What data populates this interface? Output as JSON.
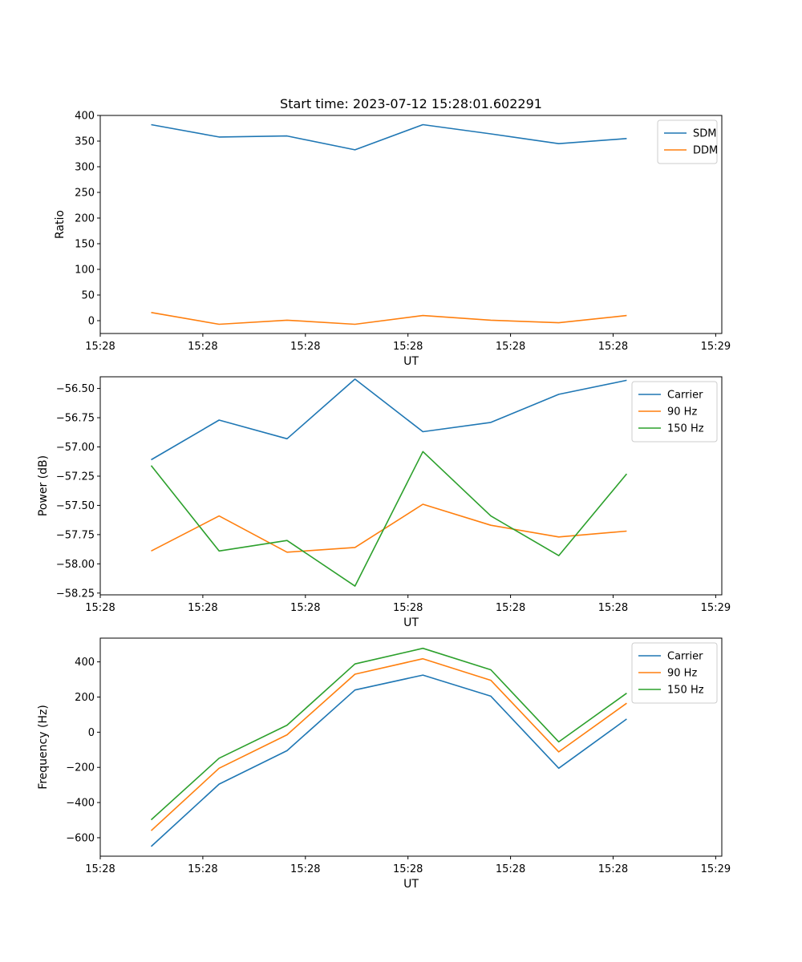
{
  "chart_data": [
    {
      "type": "line",
      "title": "Start time: 2023-07-12 15:28:01.602291",
      "xlabel": "UT",
      "ylabel": "Ratio",
      "x_tick_labels": [
        "15:28",
        "15:28",
        "15:28",
        "15:28",
        "15:28",
        "15:28",
        "15:29"
      ],
      "x": [
        1,
        2,
        3,
        4,
        5,
        6,
        7,
        8
      ],
      "xlim": [
        0.25,
        9.4
      ],
      "ylim": [
        -25,
        400
      ],
      "yticks": [
        0,
        50,
        100,
        150,
        200,
        250,
        300,
        350,
        400
      ],
      "legend": "top-right",
      "series": [
        {
          "name": "SDM",
          "color": "#1f77b4",
          "values": [
            382,
            358,
            360,
            333,
            382,
            364,
            345,
            355
          ]
        },
        {
          "name": "DDM",
          "color": "#ff7f0e",
          "values": [
            16,
            -7,
            1,
            -7,
            10,
            1,
            -4,
            10
          ]
        }
      ]
    },
    {
      "type": "line",
      "title": "",
      "xlabel": "UT",
      "ylabel": "Power (dB)",
      "x_tick_labels": [
        "15:28",
        "15:28",
        "15:28",
        "15:28",
        "15:28",
        "15:28",
        "15:29"
      ],
      "x": [
        1,
        2,
        3,
        4,
        5,
        6,
        7,
        8
      ],
      "xlim": [
        0.25,
        9.4
      ],
      "ylim": [
        -58.265,
        -56.4
      ],
      "yticks": [
        -58.25,
        -58.0,
        -57.75,
        -57.5,
        -57.25,
        -57.0,
        -56.75,
        -56.5
      ],
      "legend": "top-right",
      "series": [
        {
          "name": "Carrier",
          "color": "#1f77b4",
          "values": [
            -57.11,
            -56.77,
            -56.93,
            -56.42,
            -56.87,
            -56.79,
            -56.55,
            -56.43
          ]
        },
        {
          "name": "90 Hz",
          "color": "#ff7f0e",
          "values": [
            -57.89,
            -57.59,
            -57.9,
            -57.86,
            -57.49,
            -57.67,
            -57.77,
            -57.72
          ]
        },
        {
          "name": "150 Hz",
          "color": "#2ca02c",
          "values": [
            -57.16,
            -57.89,
            -57.8,
            -58.19,
            -57.04,
            -57.59,
            -57.93,
            -57.23
          ]
        }
      ]
    },
    {
      "type": "line",
      "title": "",
      "xlabel": "UT",
      "ylabel": "Frequency (Hz)",
      "x_tick_labels": [
        "15:28",
        "15:28",
        "15:28",
        "15:28",
        "15:28",
        "15:28",
        "15:29"
      ],
      "x": [
        1,
        2,
        3,
        4,
        5,
        6,
        7,
        8
      ],
      "xlim": [
        0.25,
        9.4
      ],
      "ylim": [
        -705,
        535
      ],
      "yticks": [
        -600,
        -400,
        -200,
        0,
        200,
        400
      ],
      "legend": "top-right",
      "series": [
        {
          "name": "Carrier",
          "color": "#1f77b4",
          "values": [
            -650,
            -295,
            -105,
            240,
            325,
            205,
            -205,
            75
          ]
        },
        {
          "name": "90 Hz",
          "color": "#ff7f0e",
          "values": [
            -560,
            -205,
            -15,
            330,
            418,
            295,
            -112,
            165
          ]
        },
        {
          "name": "150 Hz",
          "color": "#2ca02c",
          "values": [
            -498,
            -148,
            40,
            388,
            477,
            355,
            -55,
            222
          ]
        }
      ]
    }
  ]
}
